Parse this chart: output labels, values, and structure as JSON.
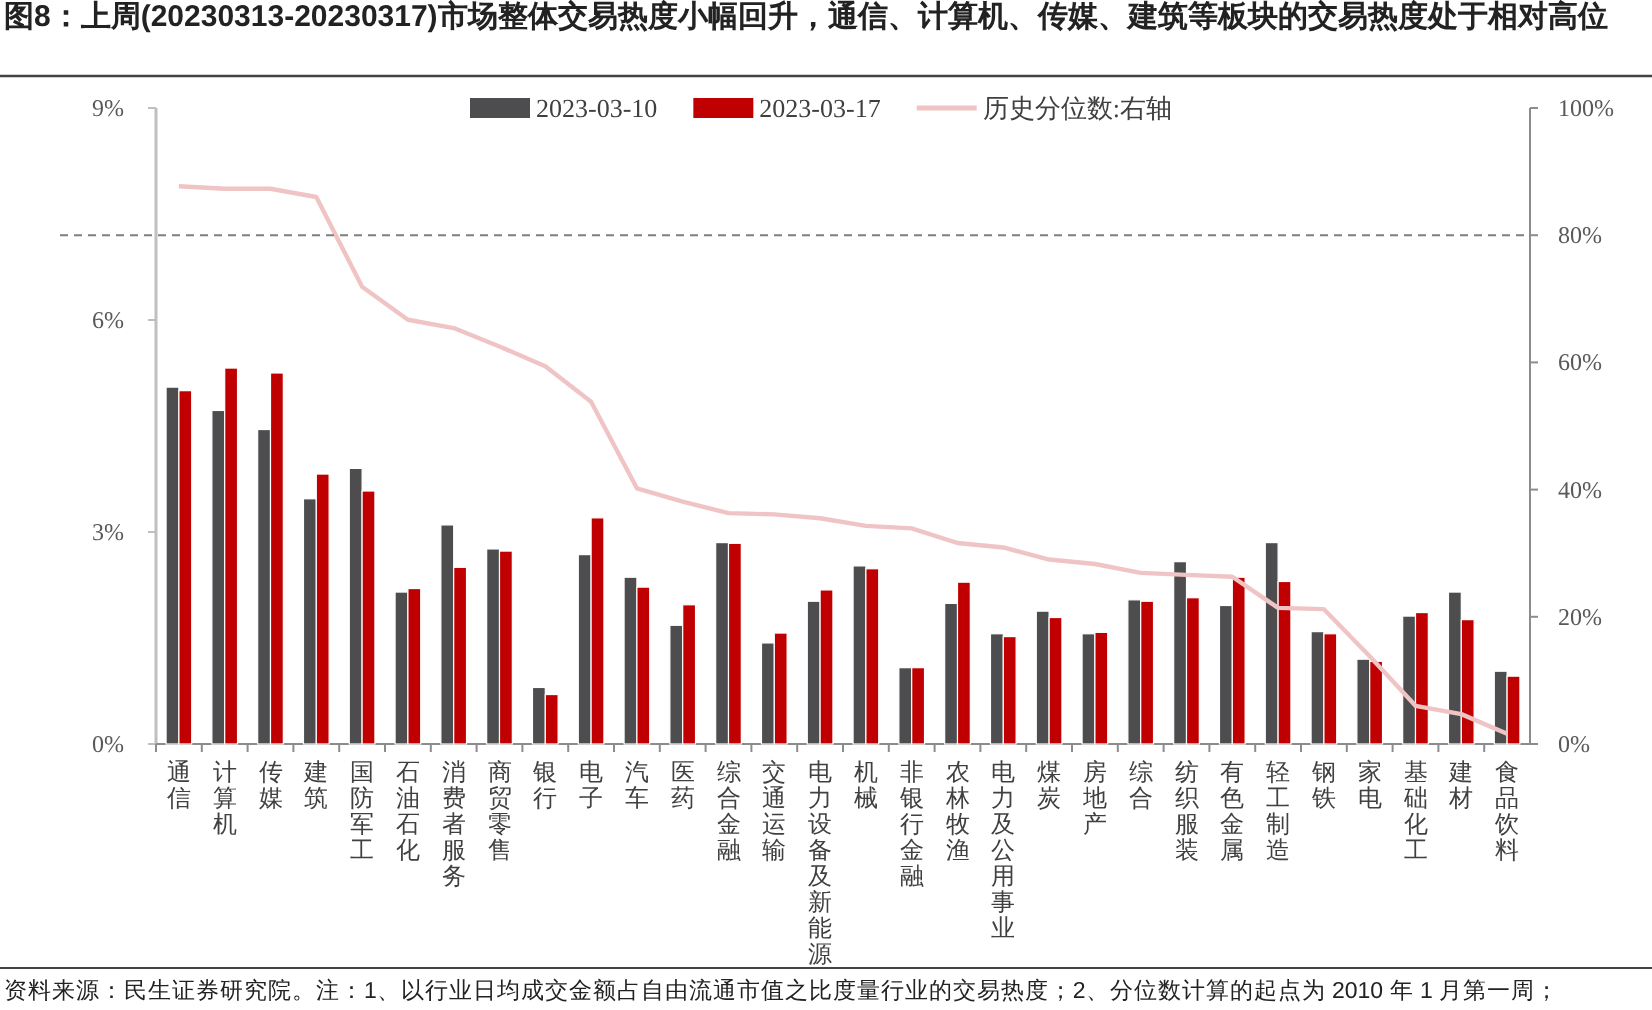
{
  "chart_data": {
    "type": "bar",
    "title": "图8：上周(20230313-20230317)市场整体交易热度小幅回升，通信、计算机、传媒、建筑等板块的交易热度处于相对高位",
    "categories": [
      "通信",
      "计算机",
      "传媒",
      "建筑",
      "国防军工",
      "石油石化",
      "消费者服务",
      "商贸零售",
      "银行",
      "电子",
      "汽车",
      "医药",
      "综合金融",
      "交通运输",
      "电力设备及新能源",
      "机械",
      "非银行金融",
      "农林牧渔",
      "电力及公用事业",
      "煤炭",
      "房地产",
      "综合",
      "纺织服装",
      "有色金属",
      "轻工制造",
      "钢铁",
      "家电",
      "基础化工",
      "建材",
      "食品饮料"
    ],
    "series": [
      {
        "name": "2023-03-10",
        "color": "#4d4d4f",
        "values": [
          5.05,
          4.72,
          4.45,
          3.47,
          3.9,
          2.15,
          3.1,
          2.76,
          0.8,
          2.68,
          2.36,
          1.68,
          2.85,
          1.43,
          2.02,
          2.52,
          1.08,
          1.99,
          1.56,
          1.88,
          1.56,
          2.04,
          2.58,
          1.96,
          2.85,
          1.59,
          1.2,
          1.81,
          2.15,
          1.03
        ]
      },
      {
        "name": "2023-03-17",
        "color": "#c00000",
        "values": [
          5.0,
          5.32,
          5.25,
          3.82,
          3.58,
          2.2,
          2.5,
          2.73,
          0.7,
          3.2,
          2.22,
          1.97,
          2.84,
          1.57,
          2.18,
          2.48,
          1.08,
          2.29,
          1.52,
          1.79,
          1.58,
          2.02,
          2.07,
          2.36,
          2.3,
          1.56,
          1.17,
          1.86,
          1.76,
          0.96
        ]
      },
      {
        "name": "历史分位数:右轴",
        "type": "line",
        "axis": "y2",
        "color": "#f0c4c4",
        "values": [
          87.7,
          87.3,
          87.3,
          86.0,
          71.9,
          66.7,
          65.4,
          62.5,
          59.4,
          53.8,
          40.2,
          38.1,
          36.3,
          36.1,
          35.5,
          34.3,
          33.9,
          31.6,
          30.9,
          29.0,
          28.3,
          26.9,
          26.6,
          26.3,
          21.4,
          21.2,
          13.8,
          6.0,
          4.7,
          1.6
        ]
      }
    ],
    "ylim": [
      0,
      9
    ],
    "yticks": [
      {
        "value": 0,
        "label": "0%"
      },
      {
        "value": 3,
        "label": "3%"
      },
      {
        "value": 6,
        "label": "6%"
      },
      {
        "value": 9,
        "label": "9%"
      }
    ],
    "y2lim": [
      0,
      100
    ],
    "y2ticks": [
      {
        "value": 0,
        "label": "0%"
      },
      {
        "value": 20,
        "label": "20%"
      },
      {
        "value": 40,
        "label": "40%"
      },
      {
        "value": 60,
        "label": "60%"
      },
      {
        "value": 80,
        "label": "80%"
      },
      {
        "value": 100,
        "label": "100%"
      }
    ],
    "ref_lines": [
      {
        "axis": "y2",
        "value": 80,
        "color": "#7f7f7f",
        "line_style": "dashed"
      }
    ],
    "legend": "top",
    "annotations": [
      "资料来源：民生证券研究院。注：1、以行业日均成交金额占自由流通市值之比度量行业的交易热度；2、分位数计算的起点为 2010 年 1 月第一周；"
    ]
  }
}
